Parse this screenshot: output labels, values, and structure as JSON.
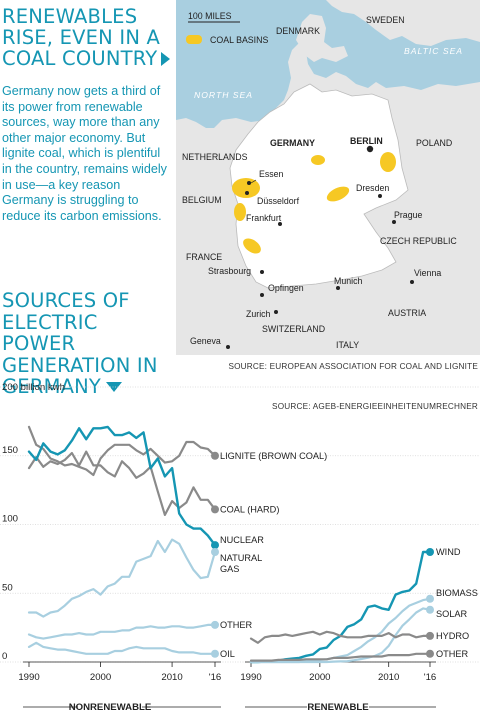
{
  "headline": "RENEWABLES RISE, EVEN IN A COAL COUNTRY",
  "intro": "Germany now gets a third of its power from renewable sources, way more than any other major economy. But lignite coal, which is plentiful in the country, remains widely in use—a key reason Germany is struggling to reduce its carbon emissions.",
  "subhead": "SOURCES OF ELECTRIC POWER GENERATION IN GERMANY",
  "map": {
    "scale_label": "100 MILES",
    "legend_label": "COAL BASINS",
    "germany_label": "GERMANY",
    "countries": [
      "DENMARK",
      "SWEDEN",
      "POLAND",
      "NETHERLANDS",
      "BELGIUM",
      "FRANCE",
      "CZECH REPUBLIC",
      "AUSTRIA",
      "SWITZERLAND",
      "ITALY"
    ],
    "seas": [
      "BALTIC SEA",
      "NORTH SEA"
    ],
    "cities": [
      "BERLIN",
      "Essen",
      "Düsseldorf",
      "Dresden",
      "Frankfurt",
      "Prague",
      "Strasbourg",
      "Opfingen",
      "Munich",
      "Vienna",
      "Zurich",
      "Geneva"
    ],
    "source": "SOURCE: EUROPEAN ASSOCIATION FOR COAL AND LIGNITE",
    "colors": {
      "land": "#e6e6e6",
      "germany": "#ffffff",
      "water": "#a9cfe0",
      "coal": "#f6c824"
    }
  },
  "chart_data": [
    {
      "panel": "NONRENEWABLE",
      "type": "line",
      "unit_label": "200 billion kwh",
      "x_ticks": [
        "1990",
        "2000",
        "2010",
        "'16"
      ],
      "y_ticks": [
        "150",
        "100",
        "50",
        "0"
      ],
      "ylim": [
        0,
        200
      ],
      "xlim": [
        1990,
        2016
      ],
      "series": [
        {
          "name": "LIGNITE (BROWN COAL)",
          "color": "#8a8a8a",
          "x": [
            1990,
            1991,
            1992,
            1993,
            1994,
            1995,
            1996,
            1997,
            1998,
            1999,
            2000,
            2001,
            2002,
            2003,
            2004,
            2005,
            2006,
            2007,
            2008,
            2009,
            2010,
            2011,
            2012,
            2013,
            2014,
            2015,
            2016
          ],
          "y": [
            171,
            158,
            155,
            148,
            146,
            143,
            144,
            142,
            140,
            136,
            148,
            154,
            158,
            158,
            158,
            154,
            151,
            155,
            150,
            145,
            146,
            150,
            160,
            160,
            156,
            155,
            150
          ]
        },
        {
          "name": "COAL (HARD)",
          "color": "#8a8a8a",
          "x": [
            1990,
            1991,
            1992,
            1993,
            1994,
            1995,
            1996,
            1997,
            1998,
            1999,
            2000,
            2001,
            2002,
            2003,
            2004,
            2005,
            2006,
            2007,
            2008,
            2009,
            2010,
            2011,
            2012,
            2013,
            2014,
            2015,
            2016
          ],
          "y": [
            141,
            149,
            142,
            146,
            144,
            147,
            152,
            143,
            153,
            143,
            143,
            138,
            135,
            146,
            141,
            134,
            137,
            142,
            124,
            107,
            117,
            112,
            116,
            127,
            118,
            118,
            111
          ]
        },
        {
          "name": "NUCLEAR",
          "color": "#1596b3",
          "x": [
            1990,
            1991,
            1992,
            1993,
            1994,
            1995,
            1996,
            1997,
            1998,
            1999,
            2000,
            2001,
            2002,
            2003,
            2004,
            2005,
            2006,
            2007,
            2008,
            2009,
            2010,
            2011,
            2012,
            2013,
            2014,
            2015,
            2016
          ],
          "y": [
            153,
            147,
            159,
            153,
            151,
            154,
            161,
            170,
            162,
            170,
            170,
            171,
            165,
            165,
            167,
            163,
            167,
            141,
            148,
            135,
            141,
            108,
            100,
            97,
            97,
            92,
            85
          ]
        },
        {
          "name": "NATURAL GAS",
          "color": "#a8cfe0",
          "x": [
            1990,
            1991,
            1992,
            1993,
            1994,
            1995,
            1996,
            1997,
            1998,
            1999,
            2000,
            2001,
            2002,
            2003,
            2004,
            2005,
            2006,
            2007,
            2008,
            2009,
            2010,
            2011,
            2012,
            2013,
            2014,
            2015,
            2016
          ],
          "y": [
            36,
            36,
            33,
            36,
            37,
            41,
            46,
            48,
            51,
            53,
            49,
            55,
            57,
            62,
            62,
            73,
            75,
            77,
            88,
            80,
            89,
            86,
            76,
            67,
            61,
            62,
            80
          ]
        },
        {
          "name": "OTHER",
          "color": "#a8cfe0",
          "x": [
            1990,
            1991,
            1992,
            1993,
            1994,
            1995,
            1996,
            1997,
            1998,
            1999,
            2000,
            2001,
            2002,
            2003,
            2004,
            2005,
            2006,
            2007,
            2008,
            2009,
            2010,
            2011,
            2012,
            2013,
            2014,
            2015,
            2016
          ],
          "y": [
            20,
            18,
            17,
            18,
            19,
            20,
            20,
            21,
            20,
            20,
            22,
            22,
            22,
            23,
            23,
            25,
            25,
            26,
            25,
            25,
            26,
            26,
            25,
            25,
            26,
            27,
            27
          ]
        },
        {
          "name": "OIL",
          "color": "#a8cfe0",
          "x": [
            1990,
            1991,
            1992,
            1993,
            1994,
            1995,
            1996,
            1997,
            1998,
            1999,
            2000,
            2001,
            2002,
            2003,
            2004,
            2005,
            2006,
            2007,
            2008,
            2009,
            2010,
            2011,
            2012,
            2013,
            2014,
            2015,
            2016
          ],
          "y": [
            11,
            14,
            11,
            10,
            9,
            9,
            8,
            7,
            6,
            6,
            6,
            6,
            8,
            8,
            10,
            11,
            10,
            10,
            10,
            10,
            8,
            7,
            7,
            7,
            6,
            6,
            6
          ]
        }
      ]
    },
    {
      "panel": "RENEWABLE",
      "type": "line",
      "x_ticks": [
        "1990",
        "2000",
        "2010",
        "'16"
      ],
      "ylim": [
        0,
        200
      ],
      "xlim": [
        1990,
        2016
      ],
      "series": [
        {
          "name": "WIND",
          "color": "#1596b3",
          "x": [
            1990,
            1991,
            1992,
            1993,
            1994,
            1995,
            1996,
            1997,
            1998,
            1999,
            2000,
            2001,
            2002,
            2003,
            2004,
            2005,
            2006,
            2007,
            2008,
            2009,
            2010,
            2011,
            2012,
            2013,
            2014,
            2015,
            2016
          ],
          "y": [
            0,
            0,
            0.3,
            0.6,
            1,
            2,
            2.5,
            3,
            4.5,
            5.5,
            9.5,
            10.5,
            16,
            19,
            25.5,
            27.5,
            31,
            40,
            41,
            39,
            38,
            49,
            51,
            52,
            57,
            80,
            80
          ]
        },
        {
          "name": "BIOMASS",
          "color": "#a8cfe0",
          "x": [
            1990,
            1991,
            1992,
            1993,
            1994,
            1995,
            1996,
            1997,
            1998,
            1999,
            2000,
            2001,
            2002,
            2003,
            2004,
            2005,
            2006,
            2007,
            2008,
            2009,
            2010,
            2011,
            2012,
            2013,
            2014,
            2015,
            2016
          ],
          "y": [
            0,
            0,
            0,
            0,
            0,
            0,
            0,
            0,
            1,
            1,
            1.5,
            2,
            3,
            4,
            5,
            8,
            11,
            15,
            18,
            22,
            28,
            32,
            37,
            41,
            43,
            45,
            46
          ]
        },
        {
          "name": "SOLAR",
          "color": "#a8cfe0",
          "x": [
            1990,
            1991,
            1992,
            1993,
            1994,
            1995,
            1996,
            1997,
            1998,
            1999,
            2000,
            2001,
            2002,
            2003,
            2004,
            2005,
            2006,
            2007,
            2008,
            2009,
            2010,
            2011,
            2012,
            2013,
            2014,
            2015,
            2016
          ],
          "y": [
            0,
            0,
            0,
            0,
            0,
            0,
            0,
            0,
            0,
            0,
            0,
            0,
            0.3,
            0.4,
            0.6,
            1.3,
            2.2,
            3.1,
            4.4,
            6.6,
            11.7,
            19.6,
            26.4,
            31,
            36,
            39,
            38
          ]
        },
        {
          "name": "HYDRO",
          "color": "#8a8a8a",
          "x": [
            1990,
            1991,
            1992,
            1993,
            1994,
            1995,
            1996,
            1997,
            1998,
            1999,
            2000,
            2001,
            2002,
            2003,
            2004,
            2005,
            2006,
            2007,
            2008,
            2009,
            2010,
            2011,
            2012,
            2013,
            2014,
            2015,
            2016
          ],
          "y": [
            17,
            14,
            18,
            19,
            19,
            20,
            19,
            20,
            21,
            22,
            20,
            22,
            21,
            19,
            18,
            18,
            18,
            19,
            19,
            19,
            21,
            18,
            20,
            20,
            18,
            19,
            19
          ]
        },
        {
          "name": "OTHER",
          "color": "#8a8a8a",
          "x": [
            1990,
            1991,
            1992,
            1993,
            1994,
            1995,
            1996,
            1997,
            1998,
            1999,
            2000,
            2001,
            2002,
            2003,
            2004,
            2005,
            2006,
            2007,
            2008,
            2009,
            2010,
            2011,
            2012,
            2013,
            2014,
            2015,
            2016
          ],
          "y": [
            1,
            1,
            1,
            1,
            1.5,
            1.5,
            1.5,
            1.5,
            2,
            2,
            2,
            2,
            3,
            3,
            3,
            3.5,
            4,
            4,
            4,
            4,
            5,
            5,
            5,
            5,
            6,
            6,
            6
          ]
        }
      ]
    }
  ],
  "chart_source": "SOURCE: AGEB-ENERGIEEINHEITENUMRECHNER"
}
